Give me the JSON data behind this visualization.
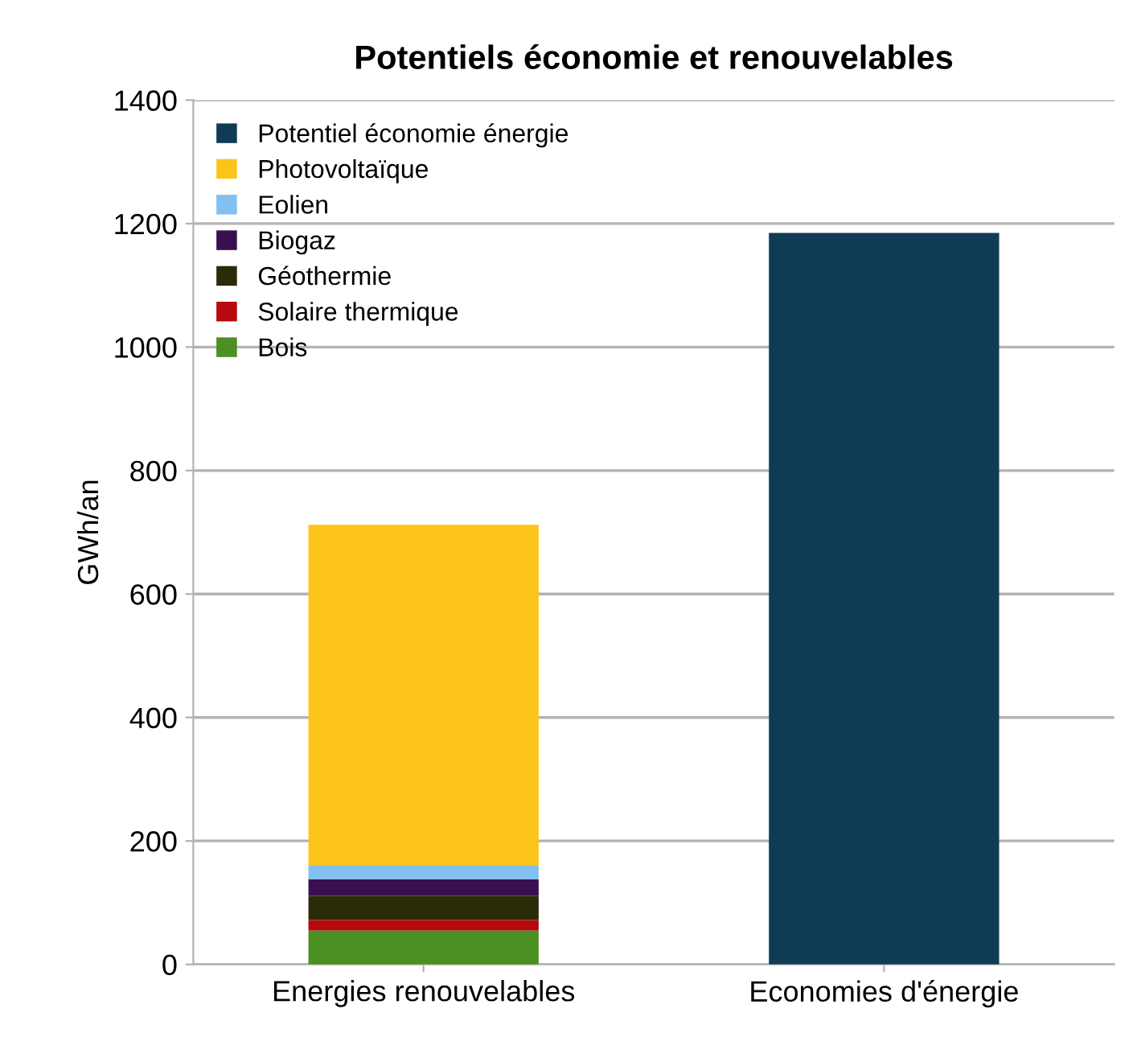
{
  "chart_data": {
    "type": "bar",
    "title": "Potentiels économie et renouvelables",
    "ylabel": "GWh/an",
    "categories": [
      "Energies renouvelables",
      "Economies d'énergie"
    ],
    "stacked": true,
    "series": [
      {
        "name": "Bois",
        "color": "#4c8f22",
        "values": [
          55,
          null
        ]
      },
      {
        "name": "Solaire thermique",
        "color": "#b8090f",
        "values": [
          17,
          null
        ]
      },
      {
        "name": "Géothermie",
        "color": "#2b2b07",
        "values": [
          39,
          null
        ]
      },
      {
        "name": "Biogaz",
        "color": "#3a0f4f",
        "values": [
          27,
          null
        ]
      },
      {
        "name": "Eolien",
        "color": "#82c0f2",
        "values": [
          22,
          null
        ]
      },
      {
        "name": "Photovoltaïque",
        "color": "#fcc419",
        "values": [
          552,
          null
        ]
      },
      {
        "name": "Potentiel économie énergie",
        "color": "#0f3b55",
        "values": [
          null,
          1185
        ]
      }
    ],
    "ylim": [
      0,
      1400
    ],
    "yticks": [
      0,
      200,
      400,
      600,
      800,
      1000,
      1200,
      1400
    ],
    "grid": "y",
    "legend": "top left"
  }
}
